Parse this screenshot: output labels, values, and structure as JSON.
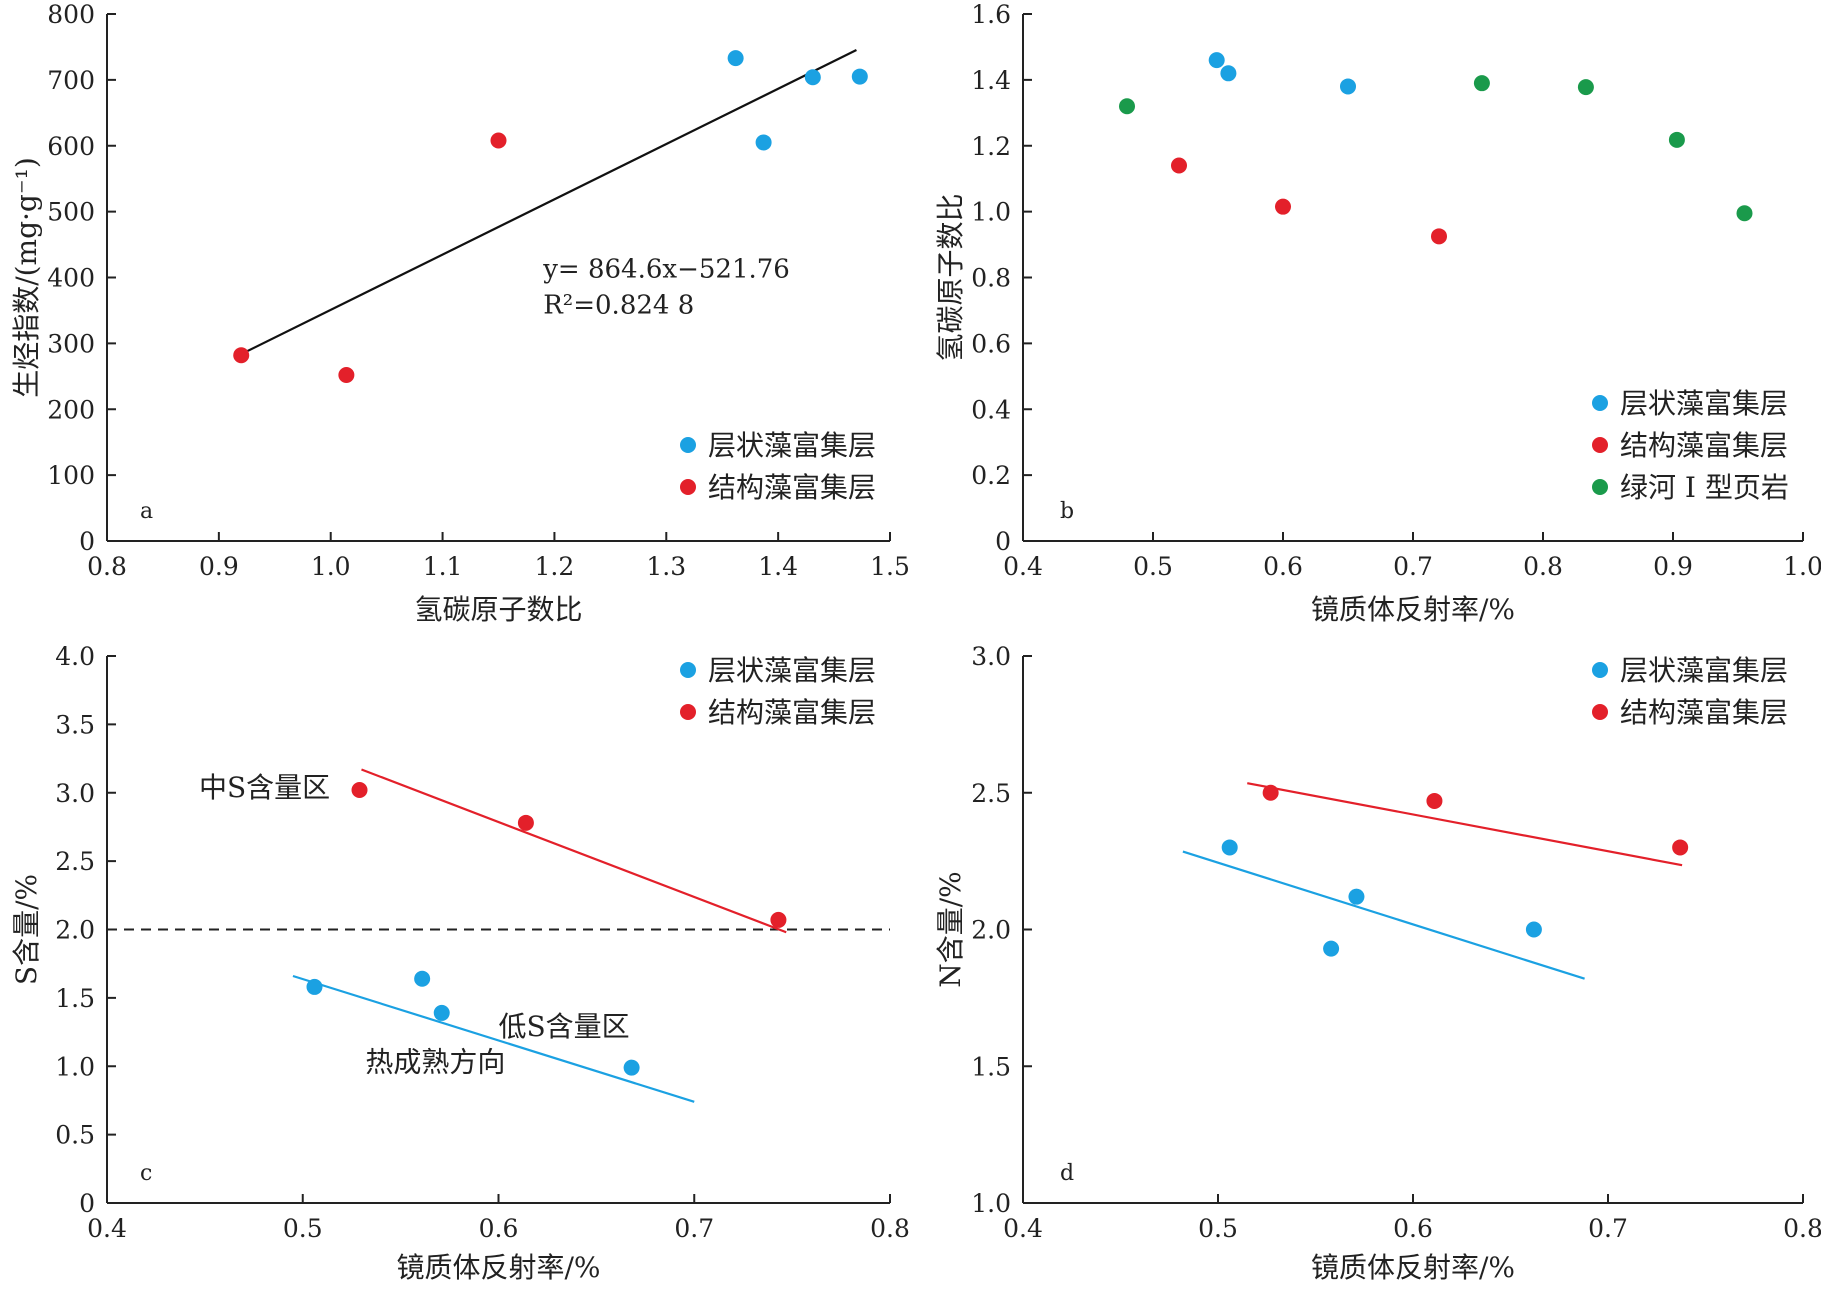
{
  "chart_data": [
    {
      "panel": "a",
      "type": "scatter",
      "xlabel": "氢碳原子数比",
      "ylabel": "生烃指数/(mg·g⁻¹)",
      "xlim": [
        0.8,
        1.5
      ],
      "ylim": [
        0,
        800
      ],
      "xticks": [
        0.8,
        0.9,
        1.0,
        1.1,
        1.2,
        1.3,
        1.4,
        1.5
      ],
      "yticks": [
        0,
        100,
        200,
        300,
        400,
        500,
        600,
        700,
        800
      ],
      "grid": false,
      "legend_position": "bottom-right",
      "series": [
        {
          "name": "层状藻富集层",
          "color": "#1ba1e2",
          "points": [
            [
              1.362,
              733
            ],
            [
              1.387,
              605
            ],
            [
              1.431,
              704
            ],
            [
              1.473,
              705
            ]
          ]
        },
        {
          "name": "结构藻富集层",
          "color": "#e3202a",
          "points": [
            [
              0.92,
              282
            ],
            [
              1.014,
              252
            ],
            [
              1.15,
              608
            ]
          ]
        }
      ],
      "fit_lines": [
        {
          "color": "#111111",
          "x": [
            0.92,
            1.47
          ],
          "y": [
            283.7,
            745.3
          ]
        }
      ],
      "annotations": [
        {
          "text": "y= 864.6x−521.76"
        },
        {
          "text": "R²=0.824 8"
        }
      ]
    },
    {
      "panel": "b",
      "type": "scatter",
      "xlabel": "镜质体反射率/%",
      "ylabel": "氢碳原子数比",
      "xlim": [
        0.4,
        1.0
      ],
      "ylim": [
        0,
        1.6
      ],
      "xticks": [
        0.4,
        0.5,
        0.6,
        0.7,
        0.8,
        0.9,
        1.0
      ],
      "yticks": [
        0,
        0.2,
        0.4,
        0.6,
        0.8,
        1.0,
        1.2,
        1.4,
        1.6
      ],
      "grid": false,
      "legend_position": "bottom-right",
      "series": [
        {
          "name": "层状藻富集层",
          "color": "#1ba1e2",
          "points": [
            [
              0.549,
              1.46
            ],
            [
              0.558,
              1.42
            ],
            [
              0.65,
              1.38
            ]
          ]
        },
        {
          "name": "结构藻富集层",
          "color": "#e3202a",
          "points": [
            [
              0.52,
              1.14
            ],
            [
              0.6,
              1.015
            ],
            [
              0.72,
              0.925
            ]
          ]
        },
        {
          "name": "绿河 Ⅰ 型页岩",
          "color": "#1a9a4b",
          "points": [
            [
              0.48,
              1.32
            ],
            [
              0.753,
              1.39
            ],
            [
              0.833,
              1.378
            ],
            [
              0.903,
              1.218
            ],
            [
              0.955,
              0.995
            ]
          ]
        }
      ]
    },
    {
      "panel": "c",
      "type": "scatter",
      "xlabel": "镜质体反射率/%",
      "ylabel": "S含量/%",
      "xlim": [
        0.4,
        0.8
      ],
      "ylim": [
        0,
        4.0
      ],
      "xticks": [
        0.4,
        0.5,
        0.6,
        0.7,
        0.8
      ],
      "yticks": [
        0,
        0.5,
        1.0,
        1.5,
        2.0,
        2.5,
        3.0,
        3.5,
        4.0
      ],
      "grid": false,
      "legend_position": "top-right",
      "series": [
        {
          "name": "层状藻富集层",
          "color": "#1ba1e2",
          "points": [
            [
              0.506,
              1.58
            ],
            [
              0.561,
              1.64
            ],
            [
              0.571,
              1.39
            ],
            [
              0.668,
              0.99
            ]
          ]
        },
        {
          "name": "结构藻富集层",
          "color": "#e3202a",
          "points": [
            [
              0.529,
              3.02
            ],
            [
              0.614,
              2.78
            ],
            [
              0.743,
              2.07
            ]
          ]
        }
      ],
      "fit_lines": [
        {
          "color": "#e3202a",
          "x": [
            0.53,
            0.747
          ],
          "y": [
            3.17,
            1.98
          ]
        },
        {
          "color": "#1ba1e2",
          "x": [
            0.495,
            0.7
          ],
          "y": [
            1.66,
            0.74
          ]
        }
      ],
      "reference_line": {
        "y": 2.0,
        "style": "dashed"
      },
      "annotations": [
        {
          "text": "中S含量区"
        },
        {
          "text": "低S含量区"
        },
        {
          "text": "热成熟方向"
        }
      ]
    },
    {
      "panel": "d",
      "type": "scatter",
      "xlabel": "镜质体反射率/%",
      "ylabel": "N含量/%",
      "xlim": [
        0.4,
        0.8
      ],
      "ylim": [
        1.0,
        3.0
      ],
      "xticks": [
        0.4,
        0.5,
        0.6,
        0.7,
        0.8
      ],
      "yticks": [
        1.0,
        1.5,
        2.0,
        2.5,
        3.0
      ],
      "grid": false,
      "legend_position": "top-right",
      "series": [
        {
          "name": "层状藻富集层",
          "color": "#1ba1e2",
          "points": [
            [
              0.506,
              2.3
            ],
            [
              0.558,
              1.93
            ],
            [
              0.571,
              2.12
            ],
            [
              0.662,
              2.0
            ]
          ]
        },
        {
          "name": "结构藻富集层",
          "color": "#e3202a",
          "points": [
            [
              0.527,
              2.5
            ],
            [
              0.611,
              2.47
            ],
            [
              0.737,
              2.3
            ]
          ]
        }
      ],
      "fit_lines": [
        {
          "color": "#e3202a",
          "x": [
            0.515,
            0.738
          ],
          "y": [
            2.535,
            2.235
          ]
        },
        {
          "color": "#1ba1e2",
          "x": [
            0.482,
            0.688
          ],
          "y": [
            2.285,
            1.82
          ]
        }
      ]
    }
  ]
}
